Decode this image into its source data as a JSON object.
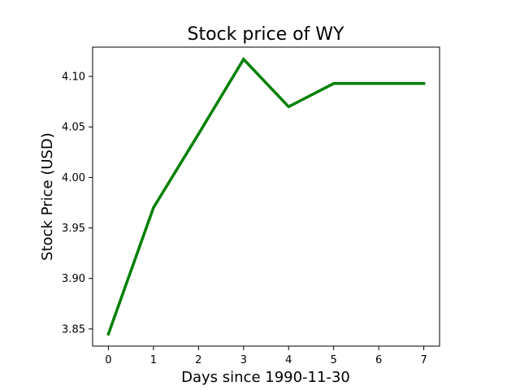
{
  "chart_data": {
    "type": "line",
    "title": "Stock price of WY",
    "xlabel": "Days since 1990-11-30",
    "ylabel": "Stock Price (USD)",
    "x": [
      0,
      1,
      2,
      3,
      4,
      5,
      6,
      7
    ],
    "series": [
      {
        "values": [
          3.845,
          3.97,
          4.043,
          4.117,
          4.07,
          4.093,
          4.093,
          4.093
        ],
        "color": "#008000"
      }
    ],
    "xlim": [
      -0.35,
      7.35
    ],
    "ylim": [
      3.833,
      4.129
    ],
    "xticks": [
      0,
      1,
      2,
      3,
      4,
      5,
      6,
      7
    ],
    "yticks": [
      3.85,
      3.9,
      3.95,
      4.0,
      4.05,
      4.1
    ],
    "ytick_labels": [
      "3.85",
      "3.90",
      "3.95",
      "4.00",
      "4.05",
      "4.10"
    ],
    "grid": false,
    "legend": "none"
  }
}
